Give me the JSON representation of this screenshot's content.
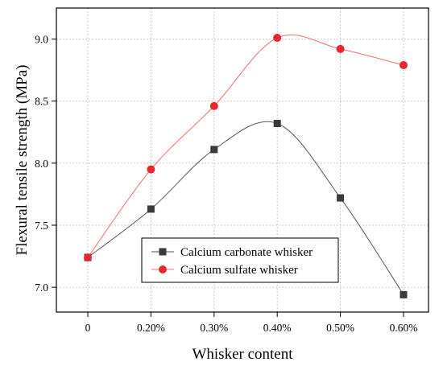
{
  "chart_data": {
    "type": "line",
    "title": "",
    "xlabel": "Whisker content",
    "ylabel": "Flexural tensile strength (MPa)",
    "categories": [
      "0",
      "0.20%",
      "0.30%",
      "0.40%",
      "0.50%",
      "0.60%"
    ],
    "ylim": [
      6.8,
      9.25
    ],
    "yticks": [
      "7.0",
      "7.5",
      "8.0",
      "8.5",
      "9.0"
    ],
    "grid": true,
    "legend_position": "lower-center",
    "series": [
      {
        "name": "Calcium carbonate whisker",
        "marker": "square",
        "marker_color": "#3a3a3a",
        "line_color": "#555555",
        "values": [
          7.24,
          7.63,
          8.11,
          8.32,
          7.72,
          6.94
        ]
      },
      {
        "name": "Calcium sulfate whisker",
        "marker": "circle",
        "marker_color": "#e8282d",
        "line_color": "#f07070",
        "values": [
          7.24,
          7.95,
          8.46,
          9.01,
          8.92,
          8.79
        ]
      }
    ]
  }
}
